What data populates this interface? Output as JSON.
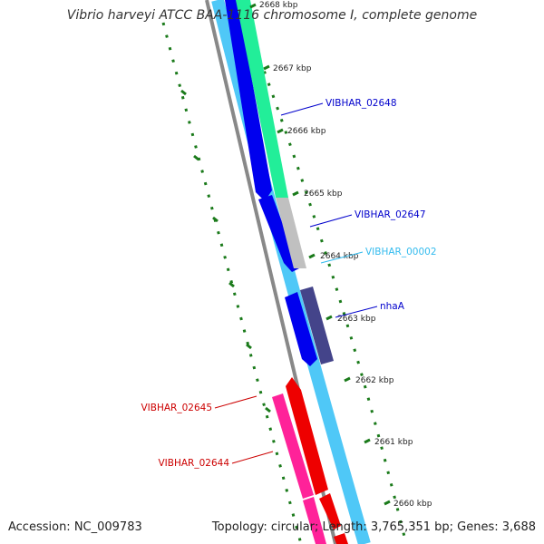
{
  "title": "Vibrio harveyi ATCC BAA-1116 chromosome I, complete genome",
  "footer": {
    "accession": "Accession: NC_009783",
    "summary": "Topology: circular; Length: 3,765,351 bp; Genes: 3,688"
  },
  "ticks": [
    {
      "label": "2668 kbp"
    },
    {
      "label": "2667 kbp"
    },
    {
      "label": "2666 kbp"
    },
    {
      "label": "2665 kbp"
    },
    {
      "label": "2664 kbp"
    },
    {
      "label": "2663 kbp"
    },
    {
      "label": "2662 kbp"
    },
    {
      "label": "2661 kbp"
    },
    {
      "label": "2660 kbp"
    }
  ],
  "genes": [
    {
      "name": "VIBHAR_02648",
      "color": "#0000cc"
    },
    {
      "name": "VIBHAR_02647",
      "color": "#0000cc"
    },
    {
      "name": "VIBHAR_00002",
      "color": "#33bbee"
    },
    {
      "name": "nhaA",
      "color": "#0000cc"
    },
    {
      "name": "VIBHAR_02645",
      "color": "#cc0000"
    },
    {
      "name": "VIBHAR_02644",
      "color": "#cc0000"
    }
  ],
  "colors": {
    "backbone": "#888888",
    "cds_forward": "#0000ee",
    "cds_light": "#4fc8f7",
    "feature_green": "#22ee99",
    "feature_gray": "#c0c0c0",
    "feature_purple": "#44448a",
    "cds_reverse": "#ee0000",
    "feature_pink": "#ff2299",
    "gc_dots": "#1a7a1a"
  }
}
